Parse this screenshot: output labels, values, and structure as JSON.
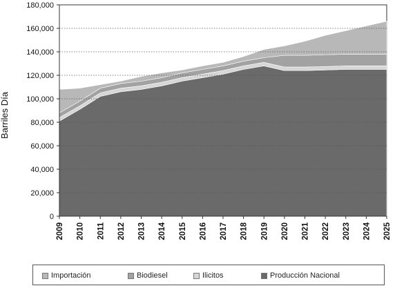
{
  "colors": {
    "importacion": "#b8b8b8",
    "biodiesel": "#a2a2a2",
    "ilicitos": "#d6d6d6",
    "produccion": "#6a6a6a"
  },
  "chart_data": {
    "type": "area",
    "stacked": true,
    "ylabel": "Barriles Día",
    "ylim": [
      0,
      180000
    ],
    "yticks": [
      "0",
      "20,000",
      "40,000",
      "60,000",
      "80,000",
      "100,000",
      "120,000",
      "140,000",
      "160,000",
      "180,000"
    ],
    "ytick_values": [
      0,
      20000,
      40000,
      60000,
      80000,
      100000,
      120000,
      140000,
      160000,
      180000
    ],
    "grid": true,
    "legend_position": "bottom",
    "x": [
      "2009",
      "2010",
      "2011",
      "2012",
      "2013",
      "2014",
      "2015",
      "2016",
      "2017",
      "2018",
      "2019",
      "2020",
      "2021",
      "2022",
      "2023",
      "2024",
      "2025"
    ],
    "series": [
      {
        "name": "Producción Nacional",
        "color_key": "produccion",
        "values": [
          81000,
          91000,
          102000,
          106000,
          108000,
          111000,
          115000,
          118000,
          121000,
          125000,
          128000,
          124000,
          124000,
          124500,
          125000,
          125000,
          125000
        ]
      },
      {
        "name": "Ilicitos",
        "color_key": "ilicitos",
        "values": [
          3000,
          3000,
          3000,
          3000,
          3000,
          3000,
          3000,
          3000,
          3000,
          3000,
          3000,
          3000,
          3000,
          3000,
          3000,
          3000,
          3000
        ]
      },
      {
        "name": "Biodiesel",
        "color_key": "biodiesel",
        "values": [
          4000,
          4000,
          4000,
          4000,
          4000,
          4000,
          4000,
          4000,
          4000,
          4000,
          4000,
          10000,
          10000,
          10000,
          10000,
          10000,
          10000
        ]
      },
      {
        "name": "Importación",
        "color_key": "importacion",
        "values": [
          20000,
          11000,
          3000,
          2000,
          4000,
          4000,
          2500,
          3000,
          3000,
          4000,
          7000,
          8000,
          12000,
          16500,
          20000,
          24000,
          28000
        ]
      }
    ],
    "legend": [
      "Importación",
      "Biodiesel",
      "Ilicitos",
      "Producción Nacional"
    ]
  }
}
